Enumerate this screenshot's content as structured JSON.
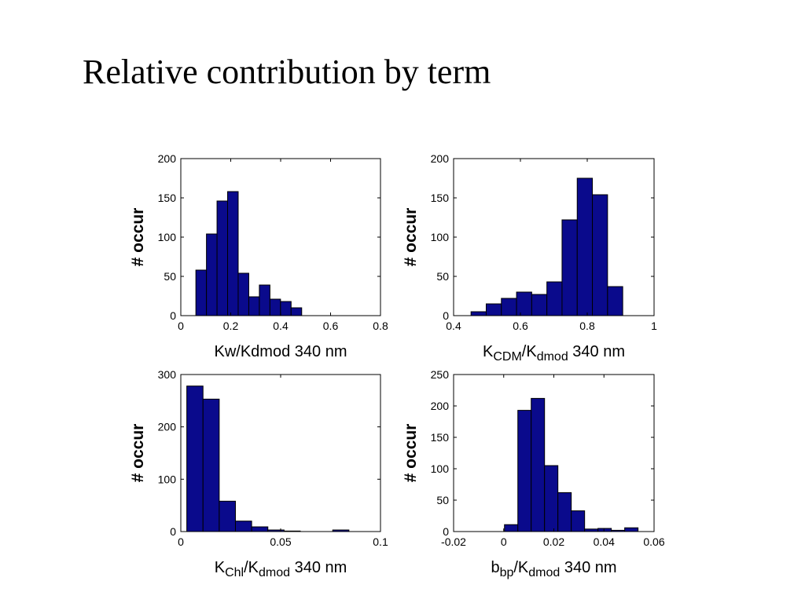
{
  "slide": {
    "title": "Relative contribution by term"
  },
  "colors": {
    "bar_fill": "#0a0a8c",
    "bar_stroke": "#000000",
    "axes": "#000000"
  },
  "chart_data": [
    {
      "type": "bar",
      "position": "top-left",
      "xlabel": {
        "parts": [
          {
            "text": "Kw/Kdmod 340 nm",
            "sub": false
          }
        ]
      },
      "ylabel": "# occur",
      "xlim": [
        0,
        0.8
      ],
      "ylim": [
        0,
        200
      ],
      "xticks": [
        0,
        0.2,
        0.4,
        0.6,
        0.8
      ],
      "xtick_labels": [
        "0",
        "0.2",
        "0.4",
        "0.6",
        "0.8"
      ],
      "yticks": [
        0,
        50,
        100,
        150,
        200
      ],
      "ytick_labels": [
        "0",
        "50",
        "100",
        "150",
        "200"
      ],
      "bin_width": 0.0424,
      "bin_centers": [
        0.0815,
        0.1239,
        0.1663,
        0.2087,
        0.2511,
        0.2935,
        0.3359,
        0.3783,
        0.4207,
        0.4631
      ],
      "values": [
        58,
        104,
        146,
        158,
        54,
        24,
        39,
        21,
        18,
        10
      ]
    },
    {
      "type": "bar",
      "position": "top-right",
      "xlabel": {
        "parts": [
          {
            "text": "K",
            "sub": false
          },
          {
            "text": "CDM",
            "sub": true
          },
          {
            "text": "/K",
            "sub": false
          },
          {
            "text": "dmod",
            "sub": true
          },
          {
            "text": " 340 nm",
            "sub": false
          }
        ]
      },
      "ylabel": "# occur",
      "xlim": [
        0.4,
        1
      ],
      "ylim": [
        0,
        200
      ],
      "xticks": [
        0.4,
        0.6,
        0.8,
        1
      ],
      "xtick_labels": [
        "0.4",
        "0.6",
        "0.8",
        "1"
      ],
      "yticks": [
        0,
        50,
        100,
        150,
        200
      ],
      "ytick_labels": [
        "0",
        "50",
        "100",
        "150",
        "200"
      ],
      "bin_width": 0.0454,
      "bin_centers": [
        0.4749,
        0.5203,
        0.5657,
        0.6111,
        0.6565,
        0.7019,
        0.7473,
        0.7927,
        0.8381,
        0.8835
      ],
      "values": [
        5,
        15,
        22,
        30,
        27,
        43,
        122,
        175,
        154,
        37
      ]
    },
    {
      "type": "bar",
      "position": "bottom-left",
      "xlabel": {
        "parts": [
          {
            "text": "K",
            "sub": false
          },
          {
            "text": "Chl",
            "sub": true
          },
          {
            "text": "/K",
            "sub": false
          },
          {
            "text": "dmod",
            "sub": true
          },
          {
            "text": " 340 nm",
            "sub": false
          }
        ]
      },
      "ylabel": "# occur",
      "xlim": [
        0,
        0.1
      ],
      "ylim": [
        0,
        300
      ],
      "xticks": [
        0,
        0.05,
        0.1
      ],
      "xtick_labels": [
        "0",
        "0.05",
        "0.1"
      ],
      "yticks": [
        0,
        100,
        200,
        300
      ],
      "ytick_labels": [
        "0",
        "100",
        "200",
        "300"
      ],
      "bin_width": 0.00812,
      "bin_centers": [
        0.00706,
        0.01518,
        0.0233,
        0.03142,
        0.03954,
        0.04766,
        0.05578,
        0.0639,
        0.07202,
        0.08014
      ],
      "values": [
        278,
        253,
        58,
        20,
        9,
        3,
        1,
        0,
        0,
        3
      ]
    },
    {
      "type": "bar",
      "position": "bottom-right",
      "xlabel": {
        "parts": [
          {
            "text": "b",
            "sub": false
          },
          {
            "text": "bp",
            "sub": true
          },
          {
            "text": "/K",
            "sub": false
          },
          {
            "text": "dmod",
            "sub": true
          },
          {
            "text": " 340 nm",
            "sub": false
          }
        ]
      },
      "ylabel": "# occur",
      "xlim": [
        -0.02,
        0.06
      ],
      "ylim": [
        0,
        250
      ],
      "xticks": [
        -0.02,
        0,
        0.02,
        0.04,
        0.06
      ],
      "xtick_labels": [
        "-0.02",
        "0",
        "0.02",
        "0.04",
        "0.06"
      ],
      "yticks": [
        0,
        50,
        100,
        150,
        200,
        250
      ],
      "ytick_labels": [
        "0",
        "50",
        "100",
        "150",
        "200",
        "250"
      ],
      "bin_width": 0.00533,
      "bin_centers": [
        0.00297,
        0.0083,
        0.01363,
        0.01896,
        0.02429,
        0.02962,
        0.03495,
        0.04028,
        0.04561,
        0.05094
      ],
      "values": [
        11,
        193,
        212,
        105,
        62,
        33,
        4,
        5,
        2,
        6
      ]
    }
  ]
}
